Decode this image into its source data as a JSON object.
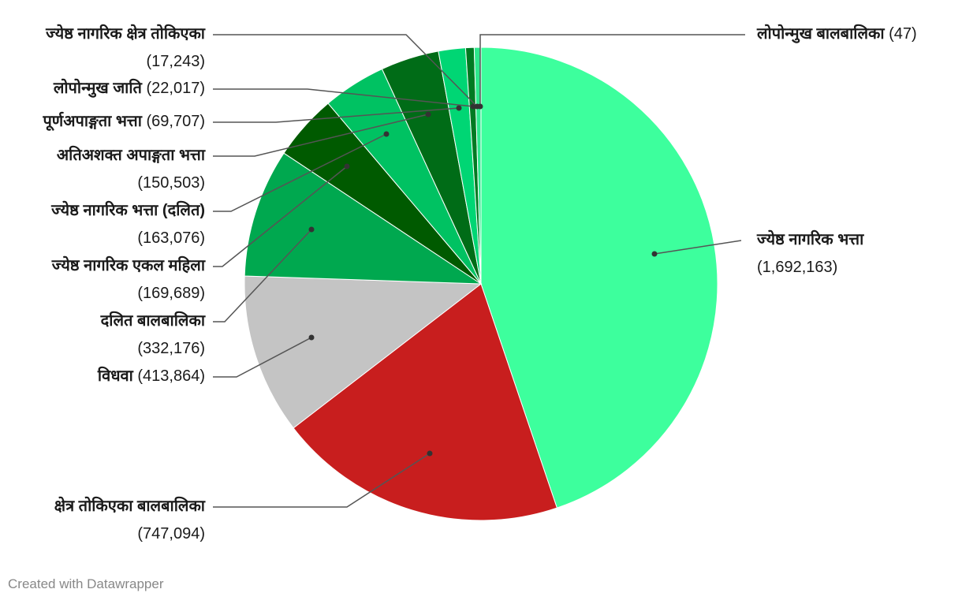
{
  "chart_data": {
    "type": "pie",
    "title": "",
    "slices": [
      {
        "label": "ज्येष्ठ नागरिक भत्ता",
        "value": 1692163,
        "value_text": "(1,692,163)",
        "color": "#3dff9d"
      },
      {
        "label": "क्षेत्र तोकिएका बालबालिका",
        "value": 747094,
        "value_text": "(747,094)",
        "color": "#c81e1e"
      },
      {
        "label": "विधवा",
        "value": 413864,
        "value_text": "(413,864)",
        "color": "#c4c4c4"
      },
      {
        "label": "दलित बालबालिका",
        "value": 332176,
        "value_text": "(332,176)",
        "color": "#00a84f"
      },
      {
        "label": "ज्येष्ठ नागरिक एकल महिला",
        "value": 169689,
        "value_text": "(169,689)",
        "color": "#005a00"
      },
      {
        "label": "ज्येष्ठ नागरिक भत्ता (दलित)",
        "value": 163076,
        "value_text": "(163,076)",
        "color": "#00c262"
      },
      {
        "label": "अतिअशक्त अपाङ्गता भत्ता",
        "value": 150503,
        "value_text": "(150,503)",
        "color": "#006c17"
      },
      {
        "label": "पूर्णअपाङ्गता भत्ता",
        "value": 69707,
        "value_text": "(69,707)",
        "color": "#00d674"
      },
      {
        "label": "लोपोन्मुख जाति",
        "value": 22017,
        "value_text": "(22,017)",
        "color": "#007a22"
      },
      {
        "label": "ज्येष्ठ नागरिक क्षेत्र तोकिएका",
        "value": 17243,
        "value_text": "(17,243)",
        "color": "#2ee88d"
      },
      {
        "label": "लोपोन्मुख बालबालिका",
        "value": 47,
        "value_text": "(47)",
        "color": "#1a8a3a"
      }
    ]
  },
  "footer": {
    "credit": "Created with Datawrapper"
  }
}
